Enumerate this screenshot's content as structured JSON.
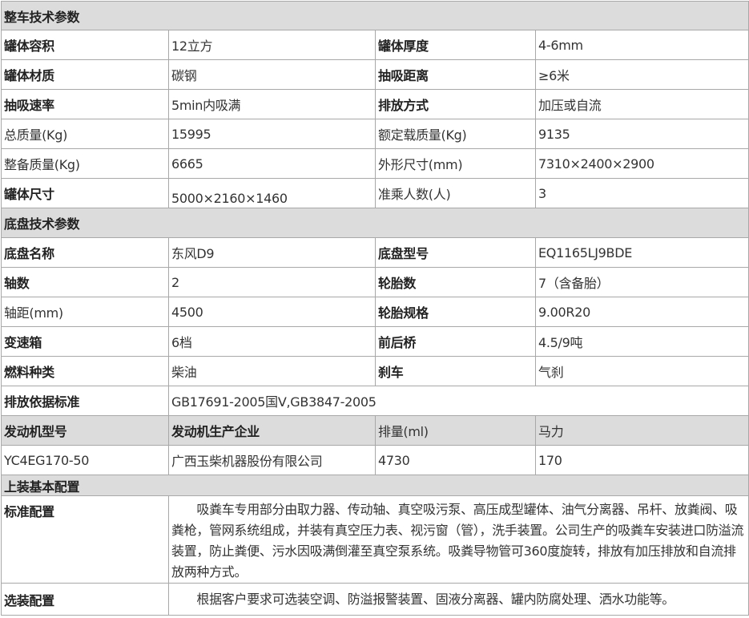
{
  "table": {
    "rows": [
      {
        "type": "section",
        "cells": [
          {
            "text": "整车技术参数",
            "bold": true,
            "span": 4
          }
        ]
      },
      {
        "cells": [
          {
            "text": "罐体容积",
            "bold": true
          },
          {
            "text": "12立方"
          },
          {
            "text": "罐体厚度",
            "bold": true
          },
          {
            "text": "4-6mm"
          }
        ]
      },
      {
        "cells": [
          {
            "text": "罐体材质",
            "bold": true
          },
          {
            "text": "碳钢"
          },
          {
            "text": "抽吸距离",
            "bold": true
          },
          {
            "text": "≥6米"
          }
        ]
      },
      {
        "cells": [
          {
            "text": "抽吸速率",
            "bold": true
          },
          {
            "text": "5min内吸满"
          },
          {
            "text": "排放方式",
            "bold": true
          },
          {
            "text": "加压或自流"
          }
        ]
      },
      {
        "cells": [
          {
            "text": "总质量(Kg)"
          },
          {
            "text": "15995"
          },
          {
            "text": "额定载质量(Kg)"
          },
          {
            "text": "9135"
          }
        ]
      },
      {
        "cells": [
          {
            "text": "整备质量(Kg)"
          },
          {
            "text": "6665"
          },
          {
            "text": "外形尺寸(mm)"
          },
          {
            "text": "7310×2400×2900"
          }
        ]
      },
      {
        "cells": [
          {
            "text": "罐体尺寸",
            "bold": true
          },
          {
            "text": "5000×2160×1460",
            "align": "bottom"
          },
          {
            "text": "准乘人数(人)"
          },
          {
            "text": "3"
          }
        ]
      },
      {
        "type": "section",
        "cells": [
          {
            "text": "底盘技术参数",
            "bold": true,
            "span": 4
          }
        ]
      },
      {
        "cells": [
          {
            "text": "底盘名称",
            "bold": true
          },
          {
            "text": "东风D9"
          },
          {
            "text": "底盘型号",
            "bold": true
          },
          {
            "text": "EQ1165LJ9BDE"
          }
        ]
      },
      {
        "cells": [
          {
            "text": "轴数",
            "bold": true
          },
          {
            "text": "2"
          },
          {
            "text": "轮胎数",
            "bold": true
          },
          {
            "text": "7（含备胎）"
          }
        ]
      },
      {
        "cells": [
          {
            "text": "轴距(mm)"
          },
          {
            "text": "4500"
          },
          {
            "text": "轮胎规格",
            "bold": true
          },
          {
            "text": "9.00R20"
          }
        ]
      },
      {
        "cells": [
          {
            "text": "变速箱",
            "bold": true
          },
          {
            "text": "6档"
          },
          {
            "text": "前后桥",
            "bold": true
          },
          {
            "text": "4.5/9吨"
          }
        ]
      },
      {
        "cells": [
          {
            "text": "燃料种类",
            "bold": true
          },
          {
            "text": "柴油"
          },
          {
            "text": "刹车",
            "bold": true
          },
          {
            "text": "气刹"
          }
        ]
      },
      {
        "cells": [
          {
            "text": "排放依据标准",
            "bold": true
          },
          {
            "text": "GB17691-2005国Ⅴ,GB3847-2005",
            "span": 3
          }
        ]
      },
      {
        "type": "grey",
        "cells": [
          {
            "text": "发动机型号",
            "bold": true
          },
          {
            "text": "发动机生产企业",
            "bold": true
          },
          {
            "text": "排量(ml)"
          },
          {
            "text": "马力",
            "align": "top"
          }
        ]
      },
      {
        "cells": [
          {
            "text": "YC4EG170-50"
          },
          {
            "text": "广西玉柴机器股份有限公司"
          },
          {
            "text": "4730"
          },
          {
            "text": "170"
          }
        ]
      },
      {
        "type": "section",
        "cells": [
          {
            "text": "上装基本配置",
            "bold": true,
            "span": 4
          }
        ]
      },
      {
        "cells": [
          {
            "text": "标准配置",
            "bold": true,
            "align": "top"
          },
          {
            "text": "　　吸粪车专用部分由取力器、传动轴、真空吸污泵、高压成型罐体、油气分离器、吊杆、放粪阀、吸粪枪，管网系统组成，并装有真空压力表、视污窗（管），洗手装置。公司生产的吸粪车安装进口防溢流装置，防止粪便、污水因吸满倒灌至真空泵系统。吸粪导物管可360度旋转，排放有加压排放和自流排放两种方式。",
            "span": 3,
            "para": true
          }
        ]
      },
      {
        "cells": [
          {
            "text": "选装配置",
            "bold": true
          },
          {
            "text": "　　根据客户要求可选装空调、防溢报警装置、固液分离器、罐内防腐处理、洒水功能等。",
            "span": 3,
            "align": "top"
          }
        ]
      }
    ]
  }
}
